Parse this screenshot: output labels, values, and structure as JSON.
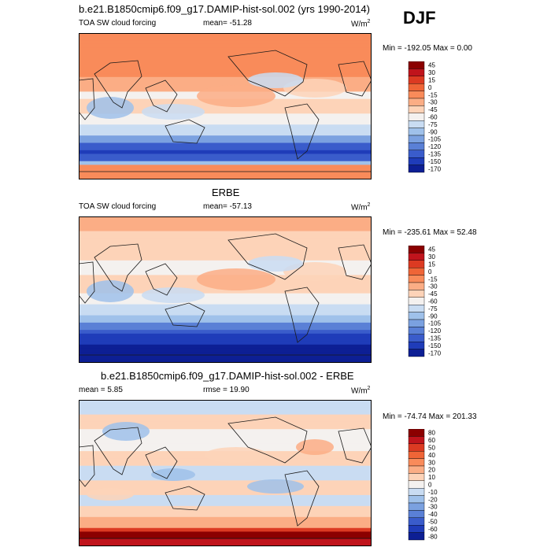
{
  "season": "DJF",
  "chart_data": [
    {
      "type": "heatmap",
      "title": "b.e21.B1850cmip6.f09_g17.DAMIP-hist-sol.002 (yrs 1990-2014)",
      "left_label": "TOA SW cloud forcing",
      "center_label": "mean= -51.28",
      "units": "W/m",
      "units_sup": "2",
      "minmax": "Min = -192.05 Max =   0.00",
      "levels": [
        45,
        30,
        15,
        0,
        -15,
        -30,
        -45,
        -60,
        -75,
        -90,
        -105,
        -120,
        -135,
        -150,
        -170
      ],
      "colors": [
        "#8b0000",
        "#c0141c",
        "#dc3a22",
        "#ef6537",
        "#f98b5a",
        "#fbad85",
        "#fdd3b8",
        "#f4f1ef",
        "#c9dcf2",
        "#9fc1ea",
        "#7ba1e0",
        "#5a80d6",
        "#3a5ccb",
        "#1f3cb9",
        "#0d1f94"
      ]
    },
    {
      "type": "heatmap",
      "title": "ERBE",
      "left_label": "TOA SW cloud forcing",
      "center_label": "mean= -57.13",
      "units": "W/m",
      "units_sup": "2",
      "minmax": "Min = -235.61 Max =  52.48",
      "levels": [
        45,
        30,
        15,
        0,
        -15,
        -30,
        -45,
        -60,
        -75,
        -90,
        -105,
        -120,
        -135,
        -150,
        -170
      ],
      "colors": [
        "#8b0000",
        "#c0141c",
        "#dc3a22",
        "#ef6537",
        "#f98b5a",
        "#fbad85",
        "#fdd3b8",
        "#f4f1ef",
        "#c9dcf2",
        "#9fc1ea",
        "#7ba1e0",
        "#5a80d6",
        "#3a5ccb",
        "#1f3cb9",
        "#0d1f94"
      ]
    },
    {
      "type": "heatmap",
      "title": "b.e21.B1850cmip6.f09_g17.DAMIP-hist-sol.002 - ERBE",
      "left_label": "mean =   5.85",
      "center_label": "rmse =  19.90",
      "units": "W/m",
      "units_sup": "2",
      "minmax": "Min = -74.74 Max = 201.33",
      "levels": [
        80,
        60,
        50,
        40,
        30,
        20,
        10,
        0,
        -10,
        -20,
        -30,
        -40,
        -50,
        -60,
        -80
      ],
      "colors": [
        "#8b0000",
        "#c0141c",
        "#dc3a22",
        "#ef6537",
        "#f98b5a",
        "#fbad85",
        "#fdd3b8",
        "#f4f1ef",
        "#c9dcf2",
        "#9fc1ea",
        "#7ba1e0",
        "#5a80d6",
        "#3a5ccb",
        "#1f3cb9",
        "#0d1f94"
      ]
    }
  ]
}
